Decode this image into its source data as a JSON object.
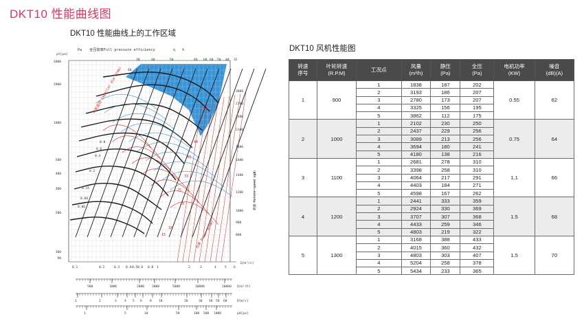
{
  "page_title": "DKT10 性能曲线图",
  "chart_title": "DKT10 性能曲线上的工作区域",
  "table_title": "DKT10 风机性能图",
  "colors": {
    "brand_pink": "#e0325f",
    "efficiency_zone": "#2b8fd8",
    "header_bg": "#4a4a4a"
  },
  "chart": {
    "pt_unit": "pt[pa]",
    "pa_label": "Pa",
    "efficiency_label": "全压效率Full pressure efficiency",
    "eta_symbol": "η",
    "percent_symbol": "%",
    "left_ticks": [
      "3000",
      "2000",
      "1000",
      "500",
      "400",
      "300",
      "200",
      "100",
      "90"
    ],
    "right_rpm_ticks": [
      "3000",
      "2700",
      "2400",
      "2100",
      "1800",
      "1600",
      "1400",
      "1200",
      "1000",
      "900",
      "800"
    ],
    "rpm_axis_label": "转速 Rotate speed n(R)",
    "rpm_unit": "rpm",
    "top_eff_labels": [
      "30",
      "40",
      "50",
      "60",
      "68",
      "60",
      "50",
      "40",
      "32"
    ],
    "eff_small_label": "68",
    "q_axis_ticks": [
      "0.1",
      "0.2",
      "0.3",
      "0.4",
      "0.5",
      "0.6",
      "0.8",
      "1",
      "2",
      "3",
      "4",
      "5",
      "6"
    ],
    "q_axis_unit": "Q[m³/s]",
    "qh_scale_ticks": [
      "500",
      "1000",
      "2000",
      "3000",
      "5000",
      "10000",
      "20000"
    ],
    "qh_unit": "Q[m³/h]",
    "v_scale_ticks": [
      "1",
      "2",
      "3",
      "4",
      "5",
      "6",
      "8",
      "10",
      "20",
      "30",
      "40",
      "50",
      "60"
    ],
    "v_unit": "V[m/s]",
    "pd_scale_ticks": [
      "1",
      "5",
      "10",
      "50",
      "100",
      "500",
      "1000"
    ],
    "pd_unit": "pd[pa]",
    "red_labels": [
      "64",
      "40",
      "42",
      "33",
      "25",
      "20",
      "18",
      "15"
    ],
    "left_curve_labels": [
      "0.8",
      "0.6",
      "0.4",
      "0.2",
      "0.15",
      "0.08",
      "0.06"
    ],
    "red_angled_labels": [
      "叶轮直径 Impeller dia D(mm)",
      "功率 Power N(kW)"
    ]
  },
  "table": {
    "headers": [
      "转速\n序号",
      "叶轮转速\n(R.P.M)",
      "工况点",
      "风量\n(m³/h)",
      "静压\n(Pa)",
      "全压\n(Pa)",
      "电机功率\n(KW)",
      "噪音\n(dB)(A)"
    ],
    "groups": [
      {
        "seq": "1",
        "rpm": "900",
        "power": "0.55",
        "noise": "62",
        "rows": [
          [
            "1",
            "1838",
            "187",
            "202"
          ],
          [
            "2",
            "3193",
            "186",
            "207"
          ],
          [
            "3",
            "2780",
            "173",
            "207"
          ],
          [
            "4",
            "3325",
            "156",
            "195"
          ],
          [
            "5",
            "3862",
            "112",
            "175"
          ]
        ]
      },
      {
        "seq": "2",
        "rpm": "1000",
        "power": "0.75",
        "noise": "64",
        "rows": [
          [
            "1",
            "2102",
            "230",
            "250"
          ],
          [
            "2",
            "2437",
            "229",
            "256"
          ],
          [
            "3",
            "3089",
            "213",
            "256"
          ],
          [
            "4",
            "3694",
            "180",
            "241"
          ],
          [
            "5",
            "4180",
            "138",
            "216"
          ]
        ]
      },
      {
        "seq": "3",
        "rpm": "1100",
        "power": "1.1",
        "noise": "66",
        "rows": [
          [
            "1",
            "2681",
            "278",
            "310"
          ],
          [
            "2",
            "3398",
            "258",
            "310"
          ],
          [
            "3",
            "4064",
            "217",
            "291"
          ],
          [
            "4",
            "4403",
            "184",
            "271"
          ],
          [
            "5",
            "4598",
            "167",
            "262"
          ]
        ]
      },
      {
        "seq": "4",
        "rpm": "1200",
        "power": "1.5",
        "noise": "68",
        "rows": [
          [
            "1",
            "2441",
            "333",
            "359"
          ],
          [
            "2",
            "2924",
            "330",
            "369"
          ],
          [
            "3",
            "3707",
            "307",
            "368"
          ],
          [
            "4",
            "4433",
            "259",
            "346"
          ],
          [
            "5",
            "4803",
            "219",
            "322"
          ]
        ]
      },
      {
        "seq": "5",
        "rpm": "1300",
        "power": "1.5",
        "noise": "70",
        "rows": [
          [
            "1",
            "3168",
            "388",
            "433"
          ],
          [
            "2",
            "4015",
            "360",
            "432"
          ],
          [
            "3",
            "4803",
            "303",
            "407"
          ],
          [
            "4",
            "5204",
            "258",
            "378"
          ],
          [
            "5",
            "5434",
            "233",
            "365"
          ]
        ]
      }
    ]
  }
}
